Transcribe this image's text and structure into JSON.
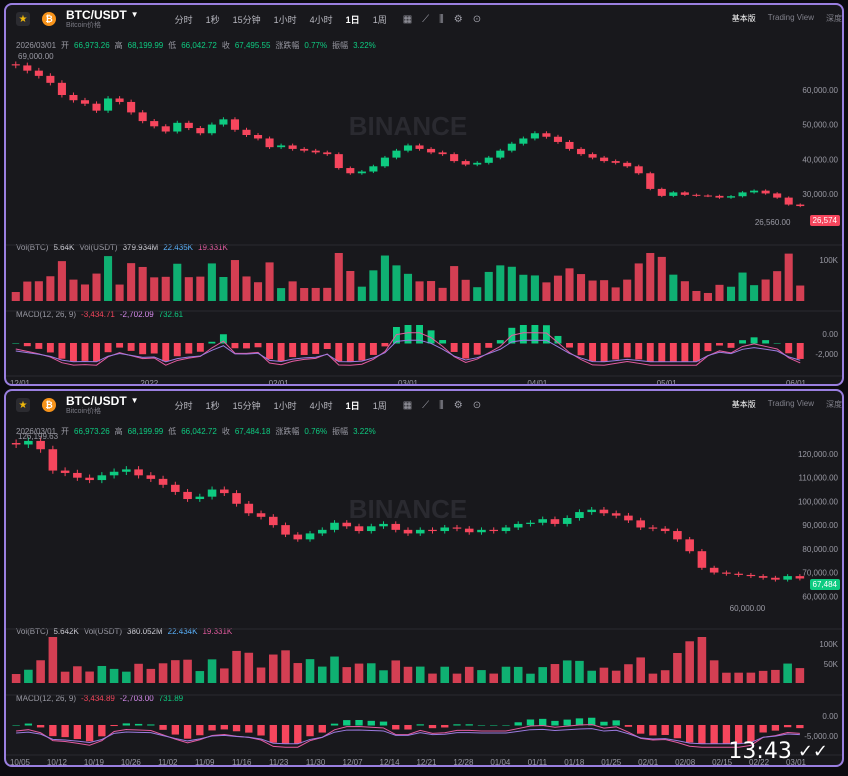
{
  "panels": [
    {
      "symbol": "BTC/USDT",
      "subtitle": "Bitcoin价格",
      "intervals": [
        "分时",
        "1秒",
        "15分钟",
        "1小时",
        "4小时",
        "1日",
        "1周"
      ],
      "active_interval": "1日",
      "tabs": [
        "基本版",
        "Trading View",
        "深度"
      ],
      "active_tab": "基本版",
      "ohlc": {
        "date": "2026/03/01",
        "open_label": "开",
        "open": "66,973.26",
        "high_label": "高",
        "high": "68,199.99",
        "low_label": "低",
        "low": "66,042.72",
        "close_label": "收",
        "close": "67,495.55",
        "chg_label": "涨跌幅",
        "chg": "0.77%",
        "amp_label": "振幅",
        "amp": "3.22%"
      },
      "max_marker": "69,000.00",
      "min_marker": "26,560.00",
      "last_price": "26,574",
      "volume": {
        "label": "Vol(BTC)",
        "value": "5.64K",
        "label2": "Vol(USDT)",
        "value2": "379.934M",
        "ma1": "22.435K",
        "ma2": "19.331K"
      },
      "macd": {
        "label": "MACD(12, 26, 9)",
        "v1": "-3,434.71",
        "v2": "-2,702.09",
        "v3": "732.61"
      },
      "price_axis": [
        "60,000.00",
        "50,000.00",
        "40,000.00",
        "30,000.00"
      ],
      "vol_axis": [
        "100K"
      ],
      "macd_axis": [
        "0.00",
        "-2,000"
      ],
      "x_axis": [
        "12/01",
        "2022",
        "02/01",
        "03/01",
        "04/01",
        "05/01",
        "06/01"
      ],
      "watermark": "BINANCE"
    },
    {
      "symbol": "BTC/USDT",
      "subtitle": "Bitcoin价格",
      "intervals": [
        "分时",
        "1秒",
        "15分钟",
        "1小时",
        "4小时",
        "1日",
        "1周"
      ],
      "active_interval": "1日",
      "tabs": [
        "基本版",
        "Trading View",
        "深度"
      ],
      "active_tab": "基本版",
      "ohlc": {
        "date": "2026/03/01",
        "open_label": "开",
        "open": "66,973.26",
        "high_label": "高",
        "high": "68,199.99",
        "low_label": "低",
        "low": "66,042.72",
        "close_label": "收",
        "close": "67,484.18",
        "chg_label": "涨跌幅",
        "chg": "0.76%",
        "amp_label": "振幅",
        "amp": "3.22%"
      },
      "max_marker": "126,199.63",
      "min_marker": "60,000.00",
      "last_price": "67,484",
      "volume": {
        "label": "Vol(BTC)",
        "value": "5.642K",
        "label2": "Vol(USDT)",
        "value2": "380.052M",
        "ma1": "22.434K",
        "ma2": "19.331K"
      },
      "macd": {
        "label": "MACD(12, 26, 9)",
        "v1": "-3,434.89",
        "v2": "-2,703.00",
        "v3": "731.89"
      },
      "price_axis": [
        "120,000.00",
        "110,000.00",
        "100,000.00",
        "90,000.00",
        "80,000.00",
        "70,000.00",
        "60,000.00"
      ],
      "vol_axis": [
        "100K",
        "50K"
      ],
      "macd_axis": [
        "0.00",
        "-5,000.00"
      ],
      "x_axis": [
        "10/05",
        "10/12",
        "10/19",
        "10/26",
        "11/02",
        "11/09",
        "11/16",
        "11/23",
        "11/30",
        "12/07",
        "12/14",
        "12/21",
        "12/28",
        "01/04",
        "01/11",
        "01/18",
        "01/25",
        "02/01",
        "02/08",
        "02/15",
        "02/22",
        "03/01"
      ],
      "watermark": "BINANCE"
    }
  ],
  "status_bar": {
    "time": "13:43"
  },
  "colors": {
    "up": "#0ecb81",
    "down": "#f6465d",
    "accent": "#f0b90b",
    "border": "#9a7fe0"
  },
  "chart_data": [
    {
      "type": "candlestick",
      "title": "BTC/USDT",
      "series": [
        {
          "name": "BTC/USDT",
          "values": [
            67000,
            65500,
            64000,
            62000,
            58500,
            57000,
            56000,
            54000,
            57500,
            56500,
            53500,
            51000,
            49500,
            48000,
            50500,
            49000,
            47500,
            50000,
            51500,
            48500,
            47000,
            46000,
            43500,
            44000,
            43000,
            42500,
            42000,
            41500,
            37500,
            36000,
            36500,
            38000,
            40500,
            42500,
            44000,
            43000,
            42000,
            41500,
            39500,
            38500,
            39000,
            40500,
            42500,
            44500,
            46000,
            47500,
            46500,
            45000,
            43000,
            41500,
            40500,
            39500,
            39000,
            38000,
            36000,
            31500,
            29500,
            30500,
            29800,
            29600,
            29500,
            29000,
            29400,
            30500,
            31000,
            30200,
            29000,
            27000,
            26574
          ]
        }
      ],
      "ylim": [
        24000,
        70000
      ],
      "xlabel": "",
      "ylabel": ""
    },
    {
      "type": "candlestick",
      "title": "BTC/USDT",
      "series": [
        {
          "name": "BTC/USDT",
          "values": [
            124000,
            125500,
            122000,
            113000,
            112000,
            110000,
            109000,
            111000,
            112500,
            113500,
            111000,
            109500,
            107000,
            104000,
            101000,
            102000,
            105000,
            103500,
            99000,
            95000,
            93500,
            90000,
            86000,
            84000,
            86500,
            88000,
            91000,
            89500,
            87500,
            89500,
            90500,
            88000,
            86500,
            88000,
            87500,
            89000,
            88500,
            87000,
            88000,
            87500,
            89000,
            90500,
            91000,
            92500,
            90500,
            93000,
            95500,
            96500,
            95000,
            94000,
            92000,
            89000,
            88500,
            87500,
            84000,
            79000,
            72000,
            70000,
            69500,
            69000,
            68500,
            67800,
            67000,
            68500,
            67484
          ]
        }
      ],
      "ylim": [
        58000,
        128000
      ],
      "xlabel": "",
      "ylabel": ""
    }
  ]
}
